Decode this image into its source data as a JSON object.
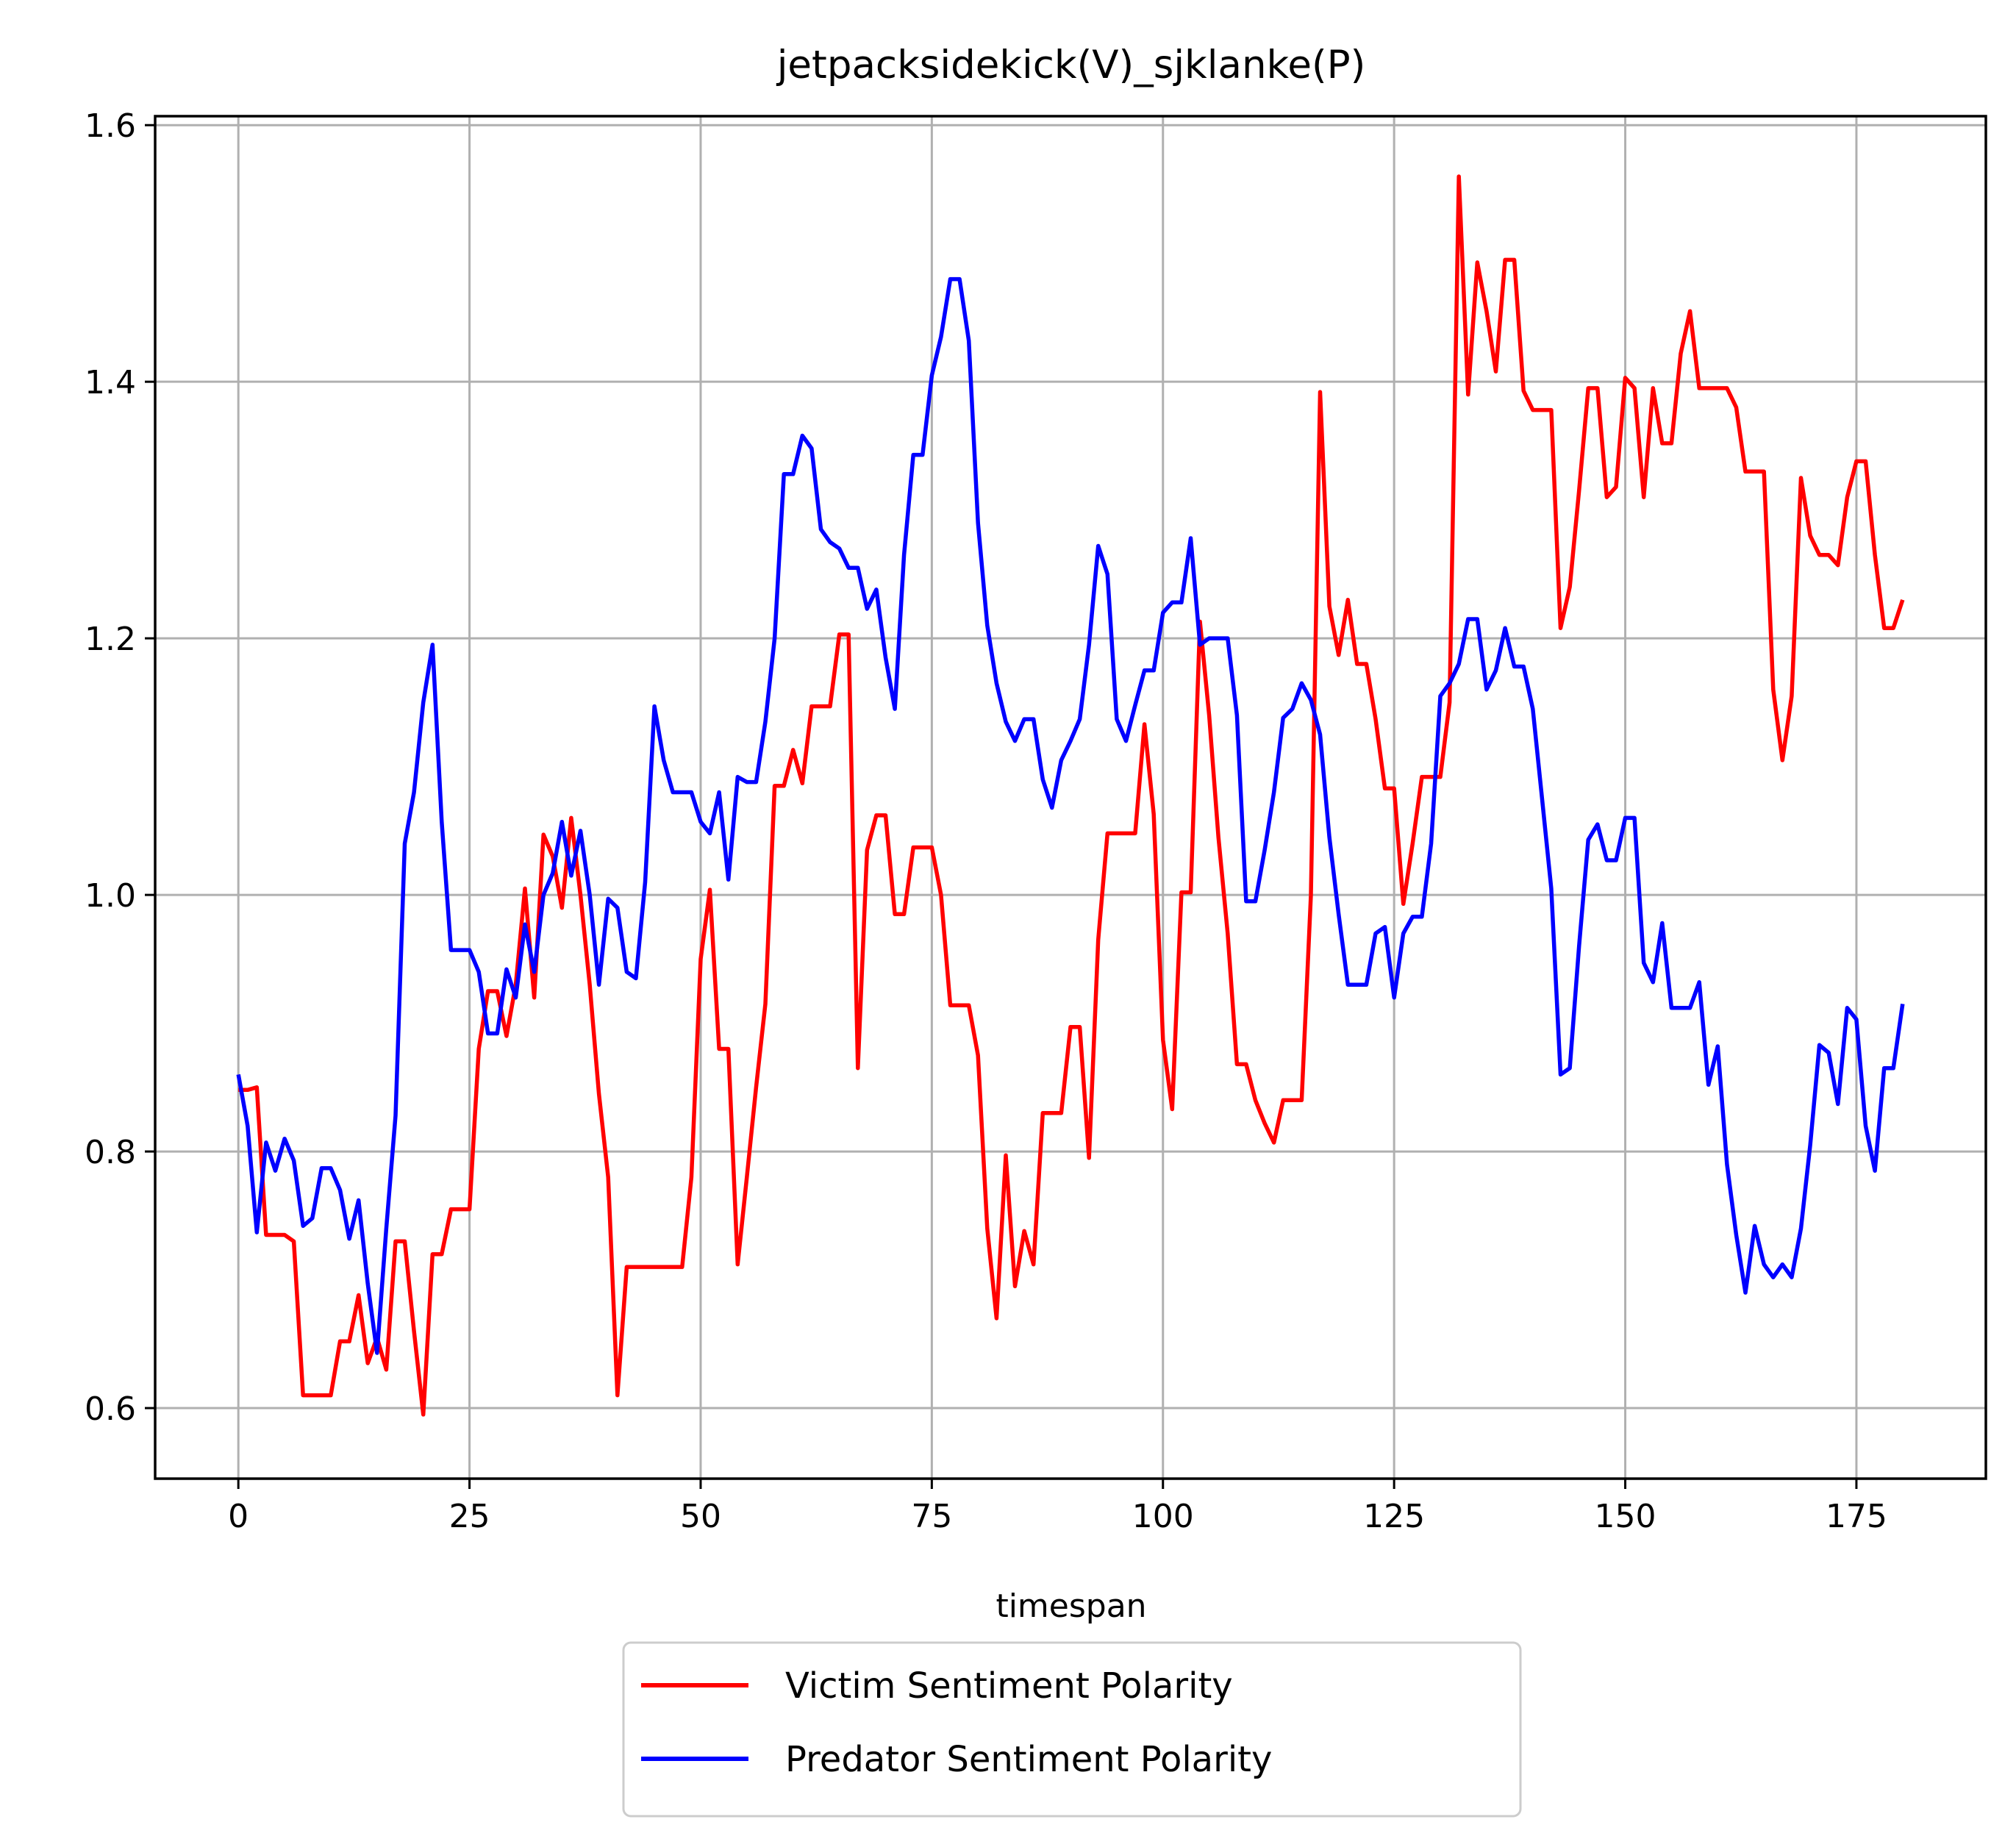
{
  "chart_data": {
    "type": "line",
    "title": "jetpacksidekick(V)_sjklanke(P)",
    "xlabel": "timespan",
    "ylabel": "",
    "xlim": [
      -9,
      189
    ],
    "ylim": [
      0.545,
      1.607
    ],
    "xticks": [
      0,
      25,
      50,
      75,
      100,
      125,
      150,
      175
    ],
    "yticks": [
      0.6,
      0.8,
      1.0,
      1.2,
      1.4,
      1.6
    ],
    "xtick_labels": [
      "0",
      "25",
      "50",
      "75",
      "100",
      "125",
      "150",
      "175"
    ],
    "ytick_labels": [
      "0.6",
      "0.8",
      "1.0",
      "1.2",
      "1.4",
      "1.6"
    ],
    "grid": true,
    "legend_position": "below-center",
    "series": [
      {
        "name": "Victim Sentiment Polarity",
        "color": "#ff0000",
        "values": [
          0.848,
          0.848,
          0.85,
          0.735,
          0.735,
          0.735,
          0.73,
          0.61,
          0.61,
          0.61,
          0.61,
          0.652,
          0.652,
          0.688,
          0.635,
          0.655,
          0.63,
          0.73,
          0.73,
          0.66,
          0.595,
          0.72,
          0.72,
          0.755,
          0.755,
          0.755,
          0.88,
          0.925,
          0.925,
          0.89,
          0.93,
          1.005,
          0.92,
          1.047,
          1.03,
          0.99,
          1.06,
          1.0,
          0.93,
          0.845,
          0.78,
          0.61,
          0.71,
          0.71,
          0.71,
          0.71,
          0.71,
          0.71,
          0.71,
          0.78,
          0.95,
          1.004,
          0.88,
          0.88,
          0.712,
          0.78,
          0.85,
          0.915,
          1.085,
          1.085,
          1.113,
          1.087,
          1.147,
          1.147,
          1.147,
          1.203,
          1.203,
          0.865,
          1.035,
          1.062,
          1.062,
          0.985,
          0.985,
          1.037,
          1.037,
          1.037,
          1.0,
          0.914,
          0.914,
          0.914,
          0.875,
          0.74,
          0.67,
          0.797,
          0.695,
          0.738,
          0.712,
          0.83,
          0.83,
          0.83,
          0.897,
          0.897,
          0.795,
          0.965,
          1.048,
          1.048,
          1.048,
          1.048,
          1.133,
          1.063,
          0.887,
          0.833,
          1.002,
          1.002,
          1.213,
          1.14,
          1.045,
          0.97,
          0.868,
          0.868,
          0.84,
          0.822,
          0.807,
          0.84,
          0.84,
          0.84,
          1.0,
          1.392,
          1.225,
          1.187,
          1.23,
          1.18,
          1.18,
          1.137,
          1.083,
          1.083,
          0.993,
          1.04,
          1.092,
          1.092,
          1.092,
          1.15,
          1.56,
          1.39,
          1.493,
          1.455,
          1.408,
          1.495,
          1.495,
          1.393,
          1.378,
          1.378,
          1.378,
          1.208,
          1.24,
          1.315,
          1.395,
          1.395,
          1.31,
          1.318,
          1.403,
          1.395,
          1.31,
          1.395,
          1.352,
          1.352,
          1.422,
          1.455,
          1.395,
          1.395,
          1.395,
          1.395,
          1.38,
          1.33,
          1.33,
          1.33,
          1.16,
          1.105,
          1.155,
          1.325,
          1.28,
          1.265,
          1.265,
          1.257,
          1.31,
          1.338,
          1.338,
          1.265,
          1.208,
          1.208,
          1.23
        ]
      },
      {
        "name": "Predator Sentiment Polarity",
        "color": "#0000ff",
        "values": [
          0.86,
          0.82,
          0.737,
          0.807,
          0.785,
          0.81,
          0.793,
          0.742,
          0.748,
          0.787,
          0.787,
          0.77,
          0.732,
          0.762,
          0.697,
          0.643,
          0.74,
          0.828,
          1.04,
          1.08,
          1.15,
          1.195,
          1.057,
          0.957,
          0.957,
          0.957,
          0.94,
          0.892,
          0.892,
          0.942,
          0.92,
          0.977,
          0.94,
          1.0,
          1.017,
          1.057,
          1.015,
          1.05,
          1.0,
          0.93,
          0.997,
          0.99,
          0.94,
          0.935,
          1.01,
          1.147,
          1.105,
          1.08,
          1.08,
          1.08,
          1.057,
          1.048,
          1.08,
          1.012,
          1.092,
          1.088,
          1.088,
          1.135,
          1.2,
          1.328,
          1.328,
          1.358,
          1.348,
          1.285,
          1.275,
          1.27,
          1.255,
          1.255,
          1.223,
          1.238,
          1.185,
          1.145,
          1.265,
          1.343,
          1.343,
          1.405,
          1.435,
          1.48,
          1.48,
          1.432,
          1.29,
          1.21,
          1.165,
          1.135,
          1.12,
          1.137,
          1.137,
          1.09,
          1.068,
          1.105,
          1.12,
          1.137,
          1.195,
          1.272,
          1.25,
          1.137,
          1.12,
          1.148,
          1.175,
          1.175,
          1.22,
          1.228,
          1.228,
          1.278,
          1.195,
          1.2,
          1.2,
          1.2,
          1.14,
          0.995,
          0.995,
          1.035,
          1.08,
          1.138,
          1.145,
          1.165,
          1.152,
          1.125,
          1.045,
          0.985,
          0.93,
          0.93,
          0.93,
          0.97,
          0.975,
          0.92,
          0.97,
          0.983,
          0.983,
          1.04,
          1.155,
          1.165,
          1.18,
          1.215,
          1.215,
          1.16,
          1.175,
          1.208,
          1.178,
          1.178,
          1.145,
          1.075,
          1.005,
          0.86,
          0.865,
          0.96,
          1.043,
          1.055,
          1.027,
          1.027,
          1.06,
          1.06,
          0.947,
          0.932,
          0.978,
          0.912,
          0.912,
          0.912,
          0.932,
          0.852,
          0.882,
          0.79,
          0.735,
          0.69,
          0.742,
          0.712,
          0.702,
          0.712,
          0.702,
          0.74,
          0.805,
          0.883,
          0.877,
          0.837,
          0.912,
          0.903,
          0.82,
          0.785,
          0.865,
          0.865,
          0.915
        ]
      }
    ]
  }
}
